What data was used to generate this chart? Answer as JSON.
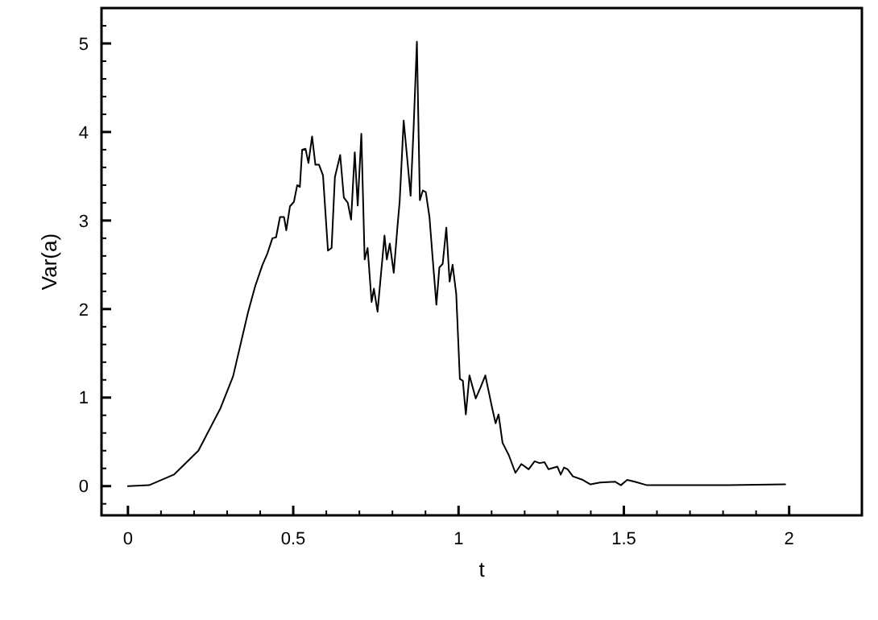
{
  "chart_data": {
    "type": "line",
    "xlabel": "t",
    "ylabel": "Var(a)",
    "xlim": [
      -0.08,
      2.22
    ],
    "ylim": [
      -0.33,
      5.4
    ],
    "xticks": [
      0,
      {
        "value": 0.1,
        "label": null
      },
      {
        "value": 0.2,
        "label": null
      },
      {
        "value": 0.3,
        "label": null
      },
      {
        "value": 0.4,
        "label": null
      },
      0.5,
      {
        "value": 0.6,
        "label": null
      },
      {
        "value": 0.7,
        "label": null
      },
      {
        "value": 0.8,
        "label": null
      },
      {
        "value": 0.9,
        "label": null
      },
      1,
      {
        "value": 1.1,
        "label": null
      },
      {
        "value": 1.2,
        "label": null
      },
      {
        "value": 1.3,
        "label": null
      },
      {
        "value": 1.4,
        "label": null
      },
      1.5,
      {
        "value": 1.6,
        "label": null
      },
      {
        "value": 1.7,
        "label": null
      },
      {
        "value": 1.8,
        "label": null
      },
      {
        "value": 1.9,
        "label": null
      },
      2
    ],
    "yticks": [
      {
        "value": -0.2,
        "label": null
      },
      0,
      {
        "value": 0.2,
        "label": null
      },
      {
        "value": 0.4,
        "label": null
      },
      {
        "value": 0.6,
        "label": null
      },
      {
        "value": 0.8,
        "label": null
      },
      1,
      {
        "value": 1.2,
        "label": null
      },
      {
        "value": 1.4,
        "label": null
      },
      {
        "value": 1.6,
        "label": null
      },
      {
        "value": 1.8,
        "label": null
      },
      2,
      {
        "value": 2.2,
        "label": null
      },
      {
        "value": 2.4,
        "label": null
      },
      {
        "value": 2.6,
        "label": null
      },
      {
        "value": 2.8,
        "label": null
      },
      3,
      {
        "value": 3.2,
        "label": null
      },
      {
        "value": 3.4,
        "label": null
      },
      {
        "value": 3.6,
        "label": null
      },
      {
        "value": 3.8,
        "label": null
      },
      4,
      {
        "value": 4.2,
        "label": null
      },
      {
        "value": 4.4,
        "label": null
      },
      {
        "value": 4.6,
        "label": null
      },
      {
        "value": 4.8,
        "label": null
      },
      5,
      {
        "value": 5.2,
        "label": null
      }
    ],
    "grid": false,
    "line_style": "solid",
    "marker": "none",
    "series": [
      {
        "color": "#000000",
        "x": [
          0,
          0.064,
          0.139,
          0.213,
          0.28,
          0.318,
          0.363,
          0.385,
          0.407,
          0.422,
          0.437,
          0.448,
          0.46,
          0.472,
          0.479,
          0.49,
          0.502,
          0.512,
          0.52,
          0.527,
          0.537,
          0.546,
          0.557,
          0.567,
          0.578,
          0.59,
          0.605,
          0.616,
          0.626,
          0.642,
          0.653,
          0.665,
          0.675,
          0.686,
          0.695,
          0.706,
          0.716,
          0.725,
          0.737,
          0.744,
          0.755,
          0.765,
          0.776,
          0.783,
          0.792,
          0.804,
          0.815,
          0.822,
          0.834,
          0.845,
          0.855,
          0.864,
          0.874,
          0.883,
          0.892,
          0.901,
          0.912,
          0.922,
          0.933,
          0.942,
          0.952,
          0.963,
          0.973,
          0.982,
          0.993,
          1.004,
          1.013,
          1.022,
          1.033,
          1.052,
          1.066,
          1.081,
          1.1,
          1.112,
          1.121,
          1.133,
          1.152,
          1.172,
          1.19,
          1.212,
          1.23,
          1.245,
          1.26,
          1.272,
          1.299,
          1.309,
          1.319,
          1.33,
          1.346,
          1.376,
          1.399,
          1.428,
          1.473,
          1.491,
          1.51,
          1.533,
          1.57,
          1.667,
          1.816,
          1.988
        ],
        "values": [
          0,
          0.01,
          0.13,
          0.4,
          0.88,
          1.24,
          1.96,
          2.26,
          2.5,
          2.63,
          2.8,
          2.81,
          3.04,
          3.04,
          2.89,
          3.16,
          3.21,
          3.4,
          3.38,
          3.8,
          3.81,
          3.65,
          3.95,
          3.63,
          3.63,
          3.51,
          2.66,
          2.69,
          3.49,
          3.74,
          3.26,
          3.2,
          3.01,
          3.77,
          3.17,
          3.98,
          2.56,
          2.69,
          2.08,
          2.23,
          1.97,
          2.38,
          2.83,
          2.56,
          2.74,
          2.41,
          2.92,
          3.22,
          4.13,
          3.69,
          3.28,
          4.04,
          5.02,
          3.23,
          3.34,
          3.32,
          3.04,
          2.56,
          2.05,
          2.47,
          2.51,
          2.92,
          2.31,
          2.5,
          2.17,
          1.21,
          1.19,
          0.81,
          1.25,
          0.99,
          1.11,
          1.25,
          0.91,
          0.71,
          0.81,
          0.49,
          0.35,
          0.15,
          0.25,
          0.19,
          0.28,
          0.26,
          0.27,
          0.19,
          0.22,
          0.13,
          0.21,
          0.19,
          0.11,
          0.07,
          0.02,
          0.04,
          0.05,
          0.01,
          0.07,
          0.05,
          0.01,
          0.01,
          0.01,
          0.02
        ]
      }
    ]
  }
}
